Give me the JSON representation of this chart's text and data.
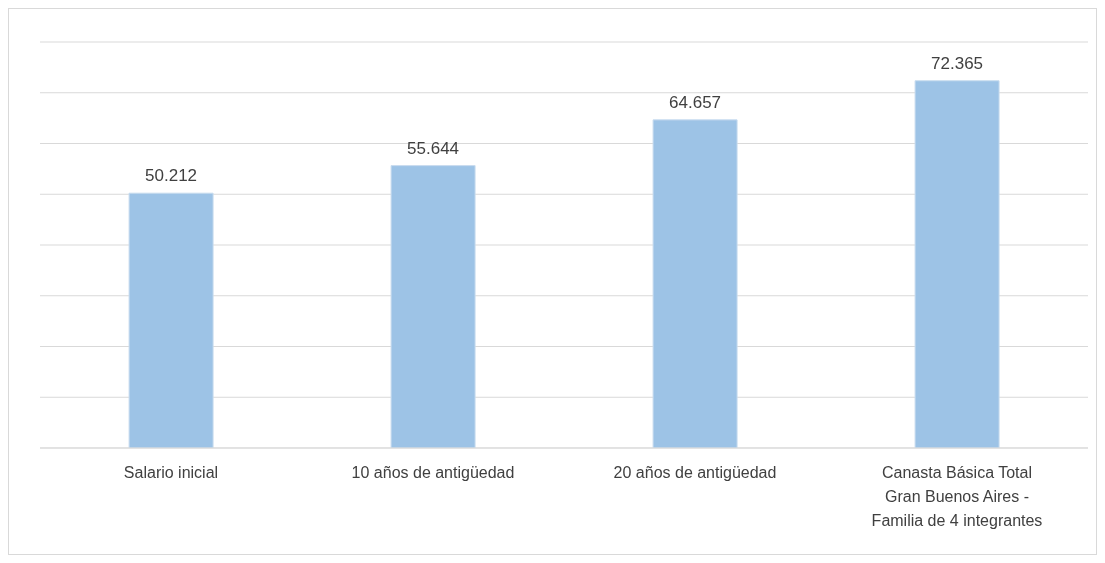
{
  "chart_data": {
    "type": "bar",
    "categories": [
      "Salario inicial",
      "10 años de antigüedad",
      "20 años de antigüedad",
      "Canasta Básica Total Gran Buenos Aires - Familia de 4 integrantes"
    ],
    "values": [
      50.212,
      55.644,
      64.657,
      72.365
    ],
    "color": "#9dc3e6",
    "ylim": [
      0,
      80
    ],
    "yticks": [
      {
        "value": 0,
        "label": null
      },
      {
        "value": 10,
        "label": null
      },
      {
        "value": 20,
        "label": null
      },
      {
        "value": 30,
        "label": null
      },
      {
        "value": 40,
        "label": null
      },
      {
        "value": 50,
        "label": null
      },
      {
        "value": 60,
        "label": null
      },
      {
        "value": 70,
        "label": null
      },
      {
        "value": 80,
        "label": null
      }
    ],
    "tick_labels": "x",
    "grid": "y",
    "data_labels": true
  }
}
